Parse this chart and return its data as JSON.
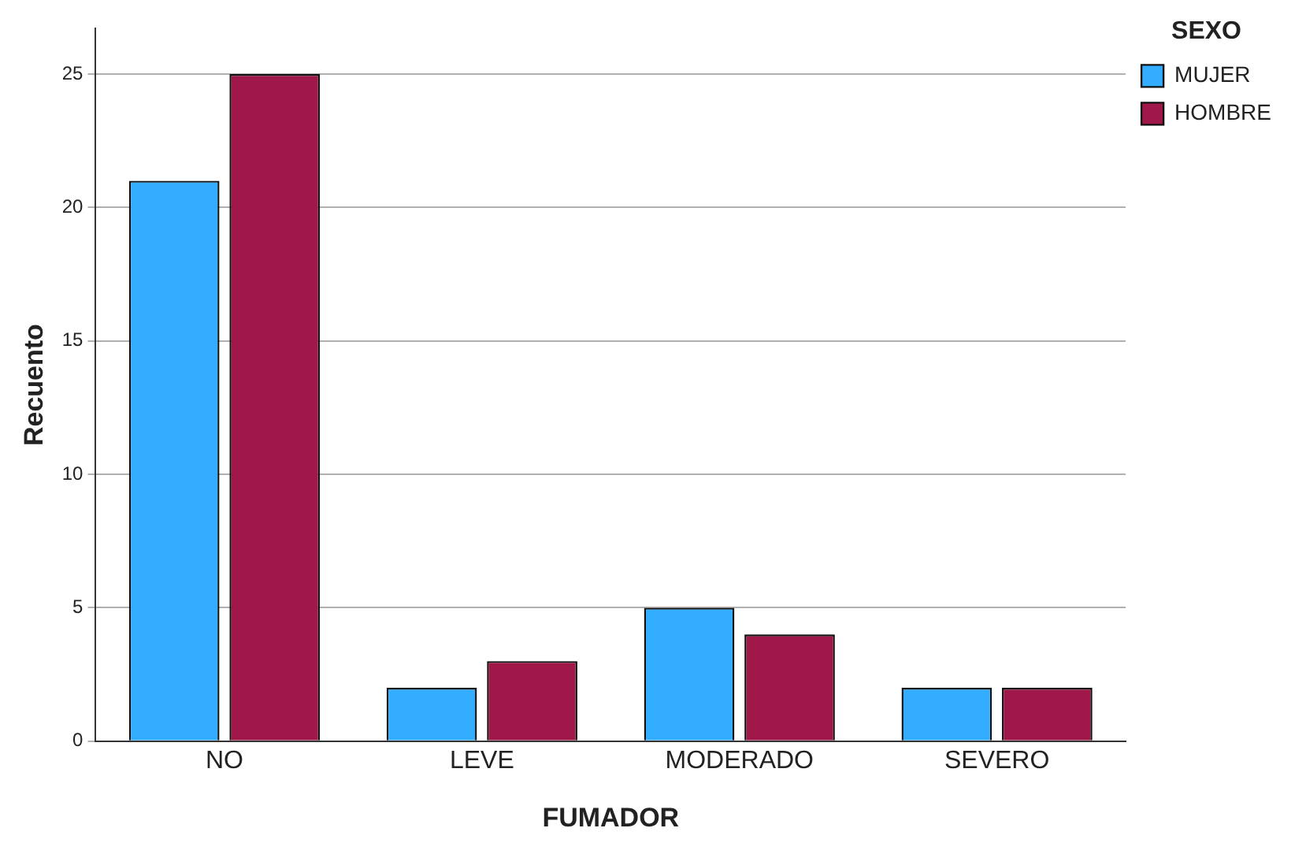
{
  "chart_data": {
    "type": "bar",
    "xlabel": "FUMADOR",
    "ylabel": "Recuento",
    "legend_title": "SEXO",
    "categories": [
      "NO",
      "LEVE",
      "MODERADO",
      "SEVERO"
    ],
    "series": [
      {
        "name": "MUJER",
        "color": "#33adff",
        "values": [
          21,
          2,
          5,
          2
        ]
      },
      {
        "name": "HOMBRE",
        "color": "#a0174a",
        "values": [
          25,
          3,
          4,
          2
        ]
      }
    ],
    "ylim": [
      0,
      26.7
    ],
    "yticks": [
      0,
      5,
      10,
      15,
      20,
      25
    ],
    "grid": "y",
    "legend": "top right"
  }
}
